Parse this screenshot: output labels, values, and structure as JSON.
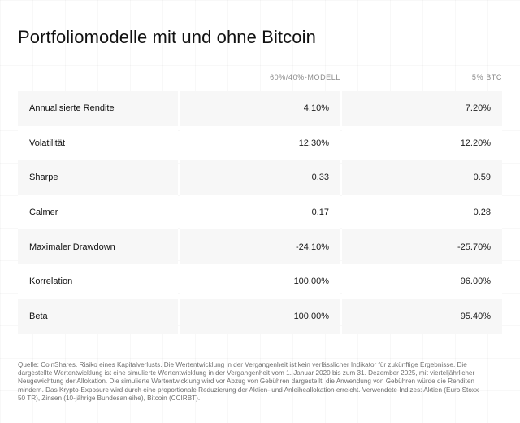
{
  "title": "Portfoliomodelle mit und ohne Bitcoin",
  "columns": [
    "60%/40%-MODELL",
    "5% BTC"
  ],
  "rows": [
    {
      "label": "Annualisierte Rendite",
      "v1": "4.10%",
      "v2": "7.20%"
    },
    {
      "label": "Volatilität",
      "v1": "12.30%",
      "v2": "12.20%"
    },
    {
      "label": "Sharpe",
      "v1": "0.33",
      "v2": "0.59"
    },
    {
      "label": "Calmer",
      "v1": "0.17",
      "v2": "0.28"
    },
    {
      "label": "Maximaler Drawdown",
      "v1": "-24.10%",
      "v2": "-25.70%"
    },
    {
      "label": "Korrelation",
      "v1": "100.00%",
      "v2": "96.00%"
    },
    {
      "label": "Beta",
      "v1": "100.00%",
      "v2": "95.40%"
    }
  ],
  "footnote": "Quelle: CoinShares. Risiko eines Kapitalverlusts. Die Wertentwicklung in der Vergangenheit ist kein verlässlicher Indikator für zukünftige Ergebnisse. Die dargestellte Wertentwicklung ist eine simulierte Wertentwicklung in der Vergangenheit vom 1. Januar 2020 bis zum 31. Dezember 2025, mit vierteljährlicher Neugewichtung der Allokation. Die simulierte Wertentwicklung wird vor Abzug von Gebühren dargestellt; die Anwendung von Gebühren würde die Renditen mindern. Das Krypto-Exposure wird durch eine proportionale Reduzierung der Aktien- und Anleiheallokation erreicht. Verwendete Indizes: Aktien (Euro Stoxx 50 TR), Zinsen (10-jährige Bundesanleihe), Bitcoin (CCIRBT)."
}
